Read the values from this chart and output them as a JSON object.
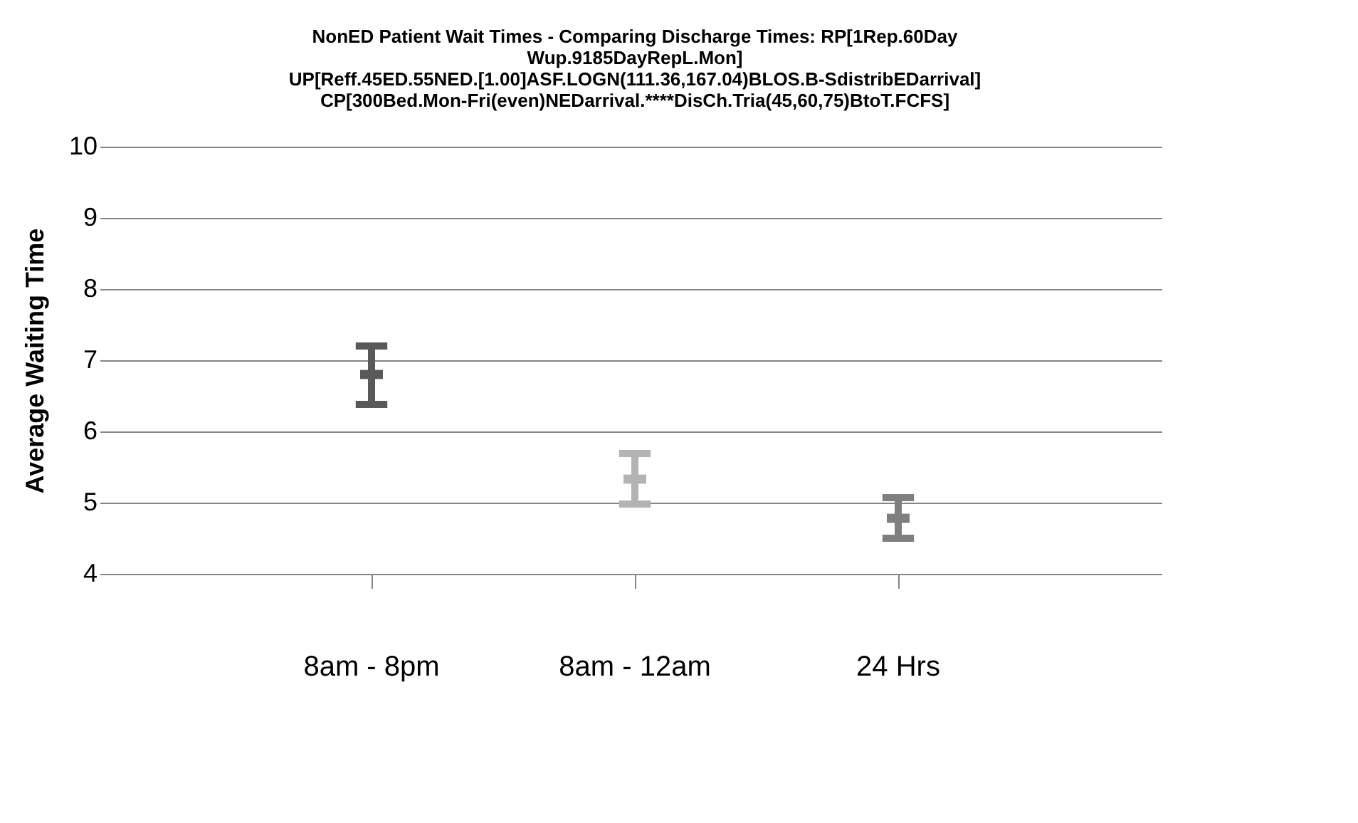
{
  "chart_data": {
    "type": "scatter",
    "title": [
      "NonED Patient Wait Times - Comparing Discharge Times: RP[1Rep.60Day",
      "Wup.9185DayRepL.Mon]",
      "UP[Reff.45ED.55NED.[1.00]ASF.LOGN(111.36,167.04)BLOS.B-SdistribEDarrival]",
      "CP[300Bed.Mon-Fri(even)NEDarrival.****DisCh.Tria(45,60,75)BtoT.FCFS]"
    ],
    "ylabel": "Average Waiting Time",
    "categories": [
      "8am - 8pm",
      "8am - 12am",
      "24 Hrs"
    ],
    "values": [
      6.8,
      5.33,
      4.78
    ],
    "errors": [
      [
        6.38,
        7.2
      ],
      [
        4.98,
        5.69
      ],
      [
        4.5,
        5.07
      ]
    ],
    "colors": [
      "#595959",
      "#b3b3b3",
      "#7f7f7f"
    ],
    "ylim": [
      4,
      10
    ],
    "yticks": [
      4,
      5,
      6,
      7,
      8,
      9,
      10
    ],
    "grid": "y"
  }
}
